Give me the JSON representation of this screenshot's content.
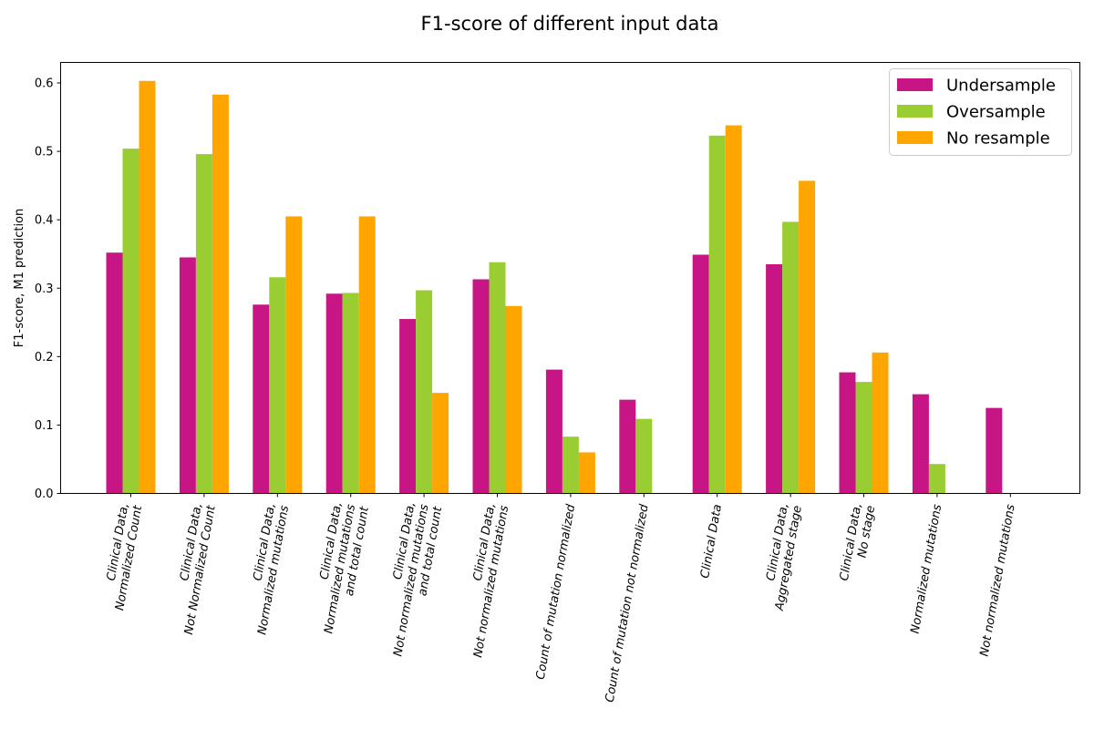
{
  "chart_data": {
    "type": "bar",
    "title": "F1-score of different input data",
    "xlabel": "",
    "ylabel": "F1-score, M1 prediction",
    "ylim": [
      0,
      0.63
    ],
    "yticks": [
      "0.0",
      "0.1",
      "0.2",
      "0.3",
      "0.4",
      "0.5",
      "0.6"
    ],
    "grid": false,
    "legend_position": "top-right",
    "categories": [
      [
        "Clinical Data,",
        "Normalized Count"
      ],
      [
        "Clinical Data,",
        "Not Normalized Count"
      ],
      [
        "Clinical Data,",
        "Normalized mutations"
      ],
      [
        "Clinical Data,",
        "Normalized mutations",
        "and total count"
      ],
      [
        "Clinical Data,",
        "Not normalized mutations",
        "and total count"
      ],
      [
        "Clinical Data,",
        "Not normalized mutations"
      ],
      [
        "Count of mutation normalized"
      ],
      [
        "Count of mutation not normalized"
      ],
      [
        "Clinical Data"
      ],
      [
        "Clinical Data,",
        "Aggregated stage"
      ],
      [
        "Clinical Data,",
        "No stage"
      ],
      [
        "Normalized mutations"
      ],
      [
        "Not normalized mutations"
      ]
    ],
    "series": [
      {
        "name": "Undersample",
        "color": "#c71585",
        "values": [
          0.352,
          0.345,
          0.276,
          0.292,
          0.255,
          0.313,
          0.181,
          0.137,
          0.349,
          0.335,
          0.177,
          0.145,
          0.125
        ]
      },
      {
        "name": "Oversample",
        "color": "#9acd32",
        "values": [
          0.504,
          0.496,
          0.316,
          0.293,
          0.297,
          0.338,
          0.083,
          0.109,
          0.523,
          0.397,
          0.163,
          0.043,
          0.0
        ]
      },
      {
        "name": "No resample",
        "color": "#ffa500",
        "values": [
          0.603,
          0.583,
          0.405,
          0.405,
          0.147,
          0.274,
          0.06,
          0.0,
          0.538,
          0.457,
          0.206,
          0.0,
          0.0
        ]
      }
    ]
  }
}
